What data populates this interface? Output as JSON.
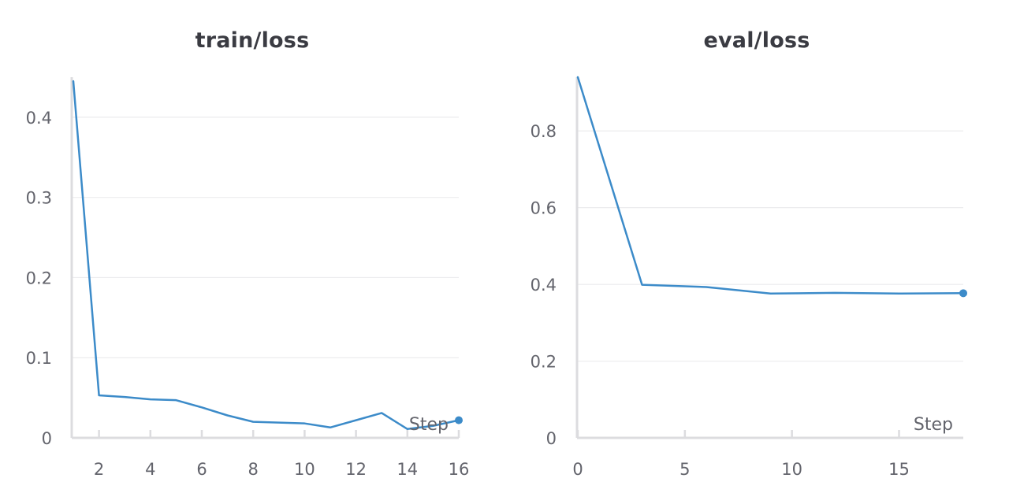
{
  "chart_data": [
    {
      "type": "line",
      "title": "train/loss",
      "xlabel": "Step",
      "ylabel": "",
      "xlim": [
        1,
        16
      ],
      "ylim": [
        0,
        0.45
      ],
      "xticks": [
        2,
        4,
        6,
        8,
        10,
        12,
        14,
        16
      ],
      "yticks": [
        0,
        0.1,
        0.2,
        0.3,
        0.4
      ],
      "ytick_labels": [
        "0",
        "0.1",
        "0.2",
        "0.3",
        "0.4"
      ],
      "grid": true,
      "series": [
        {
          "color": "#3c8bc9",
          "x": [
            1,
            2,
            3,
            4,
            5,
            6,
            7,
            8,
            9,
            10,
            11,
            12,
            13,
            14,
            15,
            16
          ],
          "values": [
            0.445,
            0.053,
            0.051,
            0.048,
            0.047,
            0.038,
            0.028,
            0.02,
            0.019,
            0.018,
            0.013,
            0.022,
            0.031,
            0.011,
            0.015,
            0.022
          ]
        }
      ]
    },
    {
      "type": "line",
      "title": "eval/loss",
      "xlabel": "Step",
      "ylabel": "",
      "xlim": [
        0,
        18
      ],
      "ylim": [
        0,
        0.94
      ],
      "xticks": [
        0,
        5,
        10,
        15
      ],
      "yticks": [
        0,
        0.2,
        0.4,
        0.6,
        0.8
      ],
      "ytick_labels": [
        "0",
        "0.2",
        "0.4",
        "0.6",
        "0.8"
      ],
      "grid": true,
      "series": [
        {
          "color": "#3c8bc9",
          "x": [
            0,
            3,
            6,
            9,
            12,
            15,
            18
          ],
          "values": [
            0.94,
            0.399,
            0.393,
            0.376,
            0.378,
            0.376,
            0.377
          ]
        }
      ]
    }
  ]
}
